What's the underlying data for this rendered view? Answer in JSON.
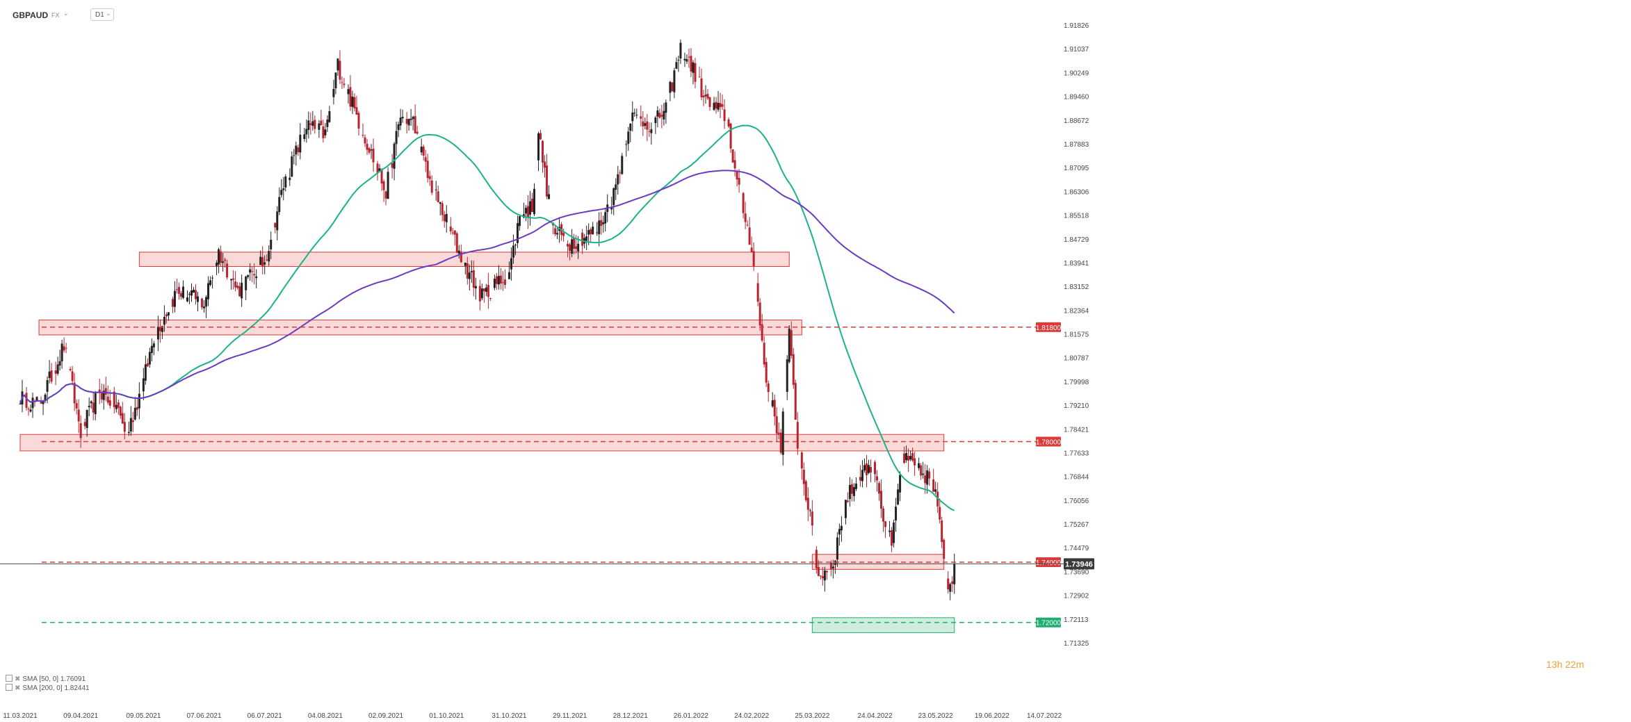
{
  "header": {
    "symbol": "GBPAUD",
    "market": "FX",
    "timeframe": "D1"
  },
  "chart_data": {
    "type": "candlestick",
    "y_axis": {
      "ticks": [
        "1.91826",
        "1.91037",
        "1.90249",
        "1.89460",
        "1.88672",
        "1.87883",
        "1.87095",
        "1.86306",
        "1.85518",
        "1.84729",
        "1.83941",
        "1.83152",
        "1.82364",
        "1.81575",
        "1.80787",
        "1.79998",
        "1.79210",
        "1.78421",
        "1.77633",
        "1.76844",
        "1.76056",
        "1.75267",
        "1.74479",
        "1.73690",
        "1.72902",
        "1.72113",
        "1.71325"
      ],
      "range": [
        1.71325,
        1.91826
      ]
    },
    "x_axis": {
      "ticks": [
        "11.03.2021",
        "09.04.2021",
        "09.05.2021",
        "07.06.2021",
        "06.07.2021",
        "04.08.2021",
        "02.09.2021",
        "01.10.2021",
        "31.10.2021",
        "29.11.2021",
        "28.12.2021",
        "26.01.2022",
        "24.02.2022",
        "25.03.2022",
        "24.04.2022",
        "23.05.2022",
        "19.06.2022",
        "14.07.2022"
      ]
    },
    "price_anchors": [
      [
        "11.03.2021",
        1.795
      ],
      [
        "20.03.2021",
        1.792
      ],
      [
        "01.04.2021",
        1.812
      ],
      [
        "09.04.2021",
        1.783
      ],
      [
        "18.04.2021",
        1.797
      ],
      [
        "26.04.2021",
        1.792
      ],
      [
        "01.05.2021",
        1.782
      ],
      [
        "09.05.2021",
        1.8
      ],
      [
        "14.05.2021",
        1.815
      ],
      [
        "25.05.2021",
        1.83
      ],
      [
        "07.06.2021",
        1.826
      ],
      [
        "14.06.2021",
        1.843
      ],
      [
        "23.06.2021",
        1.83
      ],
      [
        "06.07.2021",
        1.84
      ],
      [
        "15.07.2021",
        1.865
      ],
      [
        "26.07.2021",
        1.885
      ],
      [
        "04.08.2021",
        1.882
      ],
      [
        "10.08.2021",
        1.905
      ],
      [
        "18.08.2021",
        1.89
      ],
      [
        "02.09.2021",
        1.863
      ],
      [
        "09.09.2021",
        1.888
      ],
      [
        "15.09.2021",
        1.886
      ],
      [
        "22.09.2021",
        1.868
      ],
      [
        "01.10.2021",
        1.853
      ],
      [
        "10.10.2021",
        1.838
      ],
      [
        "18.10.2021",
        1.828
      ],
      [
        "31.10.2021",
        1.836
      ],
      [
        "05.11.2021",
        1.855
      ],
      [
        "11.11.2021",
        1.858
      ],
      [
        "14.11.2021",
        1.883
      ],
      [
        "21.11.2021",
        1.85
      ],
      [
        "29.11.2021",
        1.846
      ],
      [
        "12.12.2021",
        1.85
      ],
      [
        "20.12.2021",
        1.862
      ],
      [
        "28.12.2021",
        1.888
      ],
      [
        "08.01.2022",
        1.885
      ],
      [
        "14.01.2022",
        1.891
      ],
      [
        "21.01.2022",
        1.91
      ],
      [
        "26.01.2022",
        1.905
      ],
      [
        "03.02.2022",
        1.892
      ],
      [
        "12.02.2022",
        1.888
      ],
      [
        "17.02.2022",
        1.866
      ],
      [
        "24.02.2022",
        1.845
      ],
      [
        "03.03.2022",
        1.8
      ],
      [
        "10.03.2022",
        1.779
      ],
      [
        "14.03.2022",
        1.815
      ],
      [
        "18.03.2022",
        1.78
      ],
      [
        "25.03.2022",
        1.75
      ],
      [
        "28.03.2022",
        1.735
      ],
      [
        "04.04.2022",
        1.74
      ],
      [
        "10.04.2022",
        1.76
      ],
      [
        "17.04.2022",
        1.77
      ],
      [
        "24.04.2022",
        1.772
      ],
      [
        "28.04.2022",
        1.755
      ],
      [
        "02.05.2022",
        1.745
      ],
      [
        "07.05.2022",
        1.775
      ],
      [
        "15.05.2022",
        1.77
      ],
      [
        "20.05.2022",
        1.768
      ],
      [
        "23.05.2022",
        1.762
      ],
      [
        "29.05.2022",
        1.732
      ],
      [
        "01.06.2022",
        1.737
      ]
    ],
    "series": [
      {
        "name": "SMA [50, 0]",
        "value": "1.76091",
        "color": "#1ab388"
      },
      {
        "name": "SMA [200, 0]",
        "value": "1.82441",
        "color": "#6a3bc2"
      }
    ],
    "levels": [
      {
        "price": 1.818,
        "label": "1.81800",
        "color": "#d93a3a"
      },
      {
        "price": 1.78,
        "label": "1.78000",
        "color": "#d93a3a"
      },
      {
        "price": 1.74,
        "label": "1.74000",
        "color": "#d93a3a"
      },
      {
        "price": 1.72,
        "label": "1.72000",
        "color": "#1eae6e"
      }
    ],
    "zones": [
      {
        "from": "07.05.2021",
        "to": "14.03.2022",
        "low": 1.8395,
        "high": 1.8415,
        "color": "red"
      },
      {
        "from": "20.03.2021",
        "to": "20.03.2022",
        "low": 1.8168,
        "high": 1.819,
        "color": "red"
      },
      {
        "from": "11.03.2021",
        "to": "27.05.2022",
        "low": 1.7783,
        "high": 1.781,
        "color": "red"
      },
      {
        "from": "25.03.2022",
        "to": "27.05.2022",
        "low": 1.739,
        "high": 1.7412,
        "color": "red"
      },
      {
        "from": "25.03.2022",
        "to": "01.06.2022",
        "low": 1.718,
        "high": 1.7202,
        "color": "green"
      }
    ],
    "current_price": {
      "label": "1.73946",
      "value": 1.73946
    }
  },
  "countdown": "13h 22m"
}
